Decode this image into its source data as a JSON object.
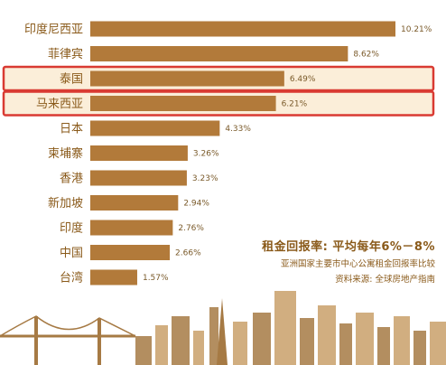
{
  "chart_data": {
    "type": "bar",
    "orientation": "horizontal",
    "categories": [
      "印度尼西亚",
      "菲律宾",
      "泰国",
      "马来西亚",
      "日本",
      "柬埔寨",
      "香港",
      "新加坡",
      "印度",
      "中国",
      "台湾"
    ],
    "values": [
      10.21,
      8.62,
      6.49,
      6.21,
      4.33,
      3.26,
      3.23,
      2.94,
      2.76,
      2.66,
      1.57
    ],
    "value_labels": [
      "10.21%",
      "8.62%",
      "6.49%",
      "6.21%",
      "4.33%",
      "3.26%",
      "3.23%",
      "2.94%",
      "2.76%",
      "2.66%",
      "1.57%"
    ],
    "highlighted": [
      "泰国",
      "马来西亚"
    ],
    "xlim": [
      0,
      11
    ],
    "grid": false,
    "bar_color": "#b27a3a",
    "highlight_color": "#d93a32",
    "highlight_fill": "#fbeed9"
  },
  "annotation": {
    "title": "租金回报率: 平均每年6%－8%",
    "subtitle": "亚洲国家主要市中心公寓租金回报率比较",
    "source": "资料来源: 全球房地产指南"
  },
  "colors": {
    "skyline": "#c9a06a",
    "skyline_dark": "#a67a44"
  }
}
